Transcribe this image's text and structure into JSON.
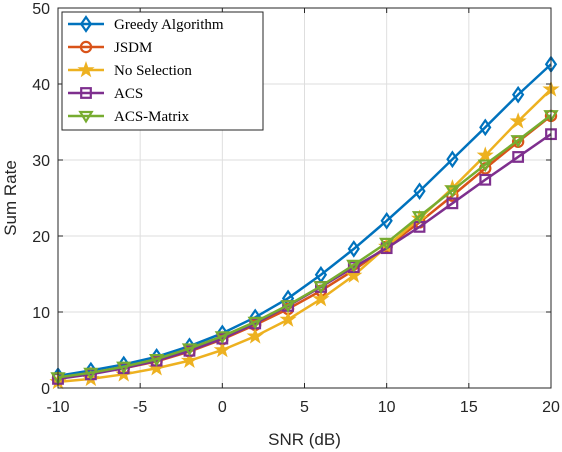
{
  "chart_data": {
    "type": "line",
    "title": "",
    "xlabel": "SNR (dB)",
    "ylabel": "Sum Rate",
    "xlim": [
      -10,
      20
    ],
    "ylim": [
      0,
      50
    ],
    "xticks": [
      -10,
      -5,
      0,
      5,
      10,
      15,
      20
    ],
    "yticks": [
      0,
      10,
      20,
      30,
      40,
      50
    ],
    "x": [
      -10,
      -8,
      -6,
      -4,
      -2,
      0,
      2,
      4,
      6,
      8,
      10,
      12,
      14,
      16,
      18,
      20
    ],
    "grid": true,
    "legend_position": "top-left",
    "series": [
      {
        "name": "Greedy Algorithm",
        "color": "#0072BD",
        "marker": "diamond",
        "values": [
          1.6,
          2.3,
          3.1,
          4.1,
          5.5,
          7.2,
          9.3,
          11.8,
          14.9,
          18.3,
          22.0,
          25.9,
          30.1,
          34.3,
          38.6,
          42.6
        ]
      },
      {
        "name": "JSDM",
        "color": "#D95319",
        "marker": "circle",
        "values": [
          1.3,
          1.9,
          2.6,
          3.5,
          4.8,
          6.4,
          8.3,
          10.4,
          12.8,
          15.5,
          18.6,
          21.8,
          25.3,
          28.9,
          32.4,
          35.8
        ]
      },
      {
        "name": "No Selection",
        "color": "#EDB120",
        "marker": "star",
        "values": [
          0.8,
          1.2,
          1.8,
          2.6,
          3.6,
          5.0,
          6.8,
          9.0,
          11.7,
          14.8,
          18.6,
          22.3,
          26.3,
          30.6,
          35.1,
          39.3
        ]
      },
      {
        "name": "ACS",
        "color": "#7E2F8E",
        "marker": "square",
        "values": [
          1.2,
          1.8,
          2.6,
          3.6,
          4.9,
          6.5,
          8.5,
          10.8,
          13.3,
          15.9,
          18.4,
          21.2,
          24.3,
          27.4,
          30.4,
          33.4
        ]
      },
      {
        "name": "ACS-Matrix",
        "color": "#77AC30",
        "marker": "triangle-down",
        "values": [
          1.4,
          2.0,
          2.8,
          3.8,
          5.2,
          6.8,
          8.7,
          10.9,
          13.4,
          16.2,
          19.1,
          22.6,
          26.0,
          29.4,
          32.6,
          35.9
        ]
      }
    ]
  }
}
